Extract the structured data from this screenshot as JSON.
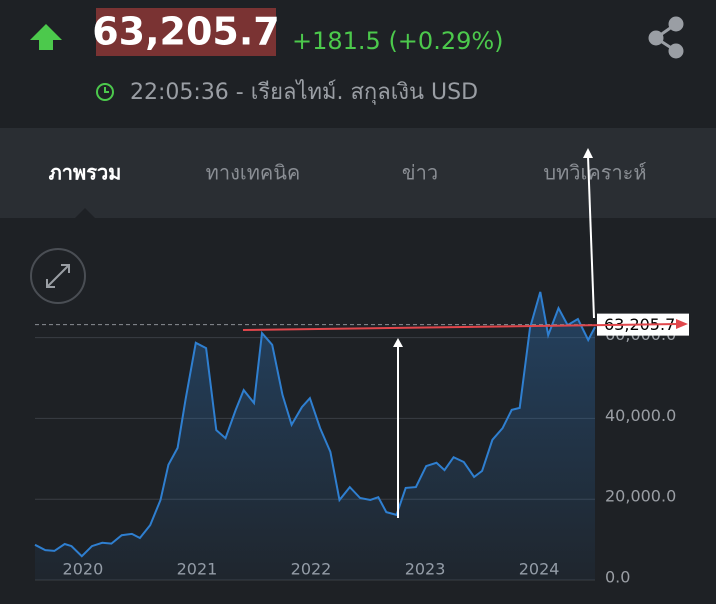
{
  "header": {
    "price": "63,205.7",
    "change": "+181.5 (+0.29%)",
    "status": "22:05:36 - เรียลไทม์. สกุลเงิน USD"
  },
  "tabs": [
    "ภาพรวม",
    "ทางเทคนิค",
    "ข่าว",
    "บทวิเคราะห์"
  ],
  "chart_data": {
    "type": "line",
    "x": [
      2019.58,
      2019.67,
      2019.75,
      2019.84,
      2019.9,
      2019.99,
      2020.08,
      2020.17,
      2020.25,
      2020.34,
      2020.43,
      2020.5,
      2020.59,
      2020.68,
      2020.75,
      2020.83,
      2020.9,
      2020.99,
      2021.08,
      2021.17,
      2021.25,
      2021.34,
      2021.41,
      2021.5,
      2021.57,
      2021.66,
      2021.75,
      2021.83,
      2021.92,
      2021.99,
      2022.08,
      2022.17,
      2022.25,
      2022.34,
      2022.43,
      2022.52,
      2022.59,
      2022.66,
      2022.75,
      2022.83,
      2022.92,
      2023.01,
      2023.1,
      2023.17,
      2023.25,
      2023.34,
      2023.43,
      2023.5,
      2023.59,
      2023.68,
      2023.76,
      2023.83,
      2023.92,
      2024.01,
      2024.08,
      2024.17,
      2024.25,
      2024.34,
      2024.43,
      2024.49
    ],
    "series": [
      {
        "color": "#2f7fd0",
        "values": [
          8700,
          7400,
          7200,
          8900,
          8400,
          5900,
          8400,
          9200,
          9000,
          11100,
          11400,
          10400,
          13600,
          19800,
          28500,
          32700,
          44600,
          58700,
          57400,
          37100,
          35100,
          42100,
          47000,
          43800,
          61100,
          58200,
          45800,
          38400,
          42800,
          45000,
          37600,
          31700,
          19800,
          23000,
          20300,
          19800,
          20500,
          16800,
          16100,
          22800,
          23000,
          28200,
          29000,
          27200,
          30400,
          29200,
          25500,
          27000,
          34700,
          37600,
          42100,
          42600,
          62400,
          71300,
          60600,
          67300,
          63100,
          64600,
          59400,
          62600
        ]
      }
    ],
    "xlim": [
      2019.58,
      2024.49
    ],
    "xticks": [
      2020,
      2021,
      2022,
      2023,
      2024
    ],
    "ylim": [
      0,
      89100
    ],
    "yticks": [
      {
        "value": 0,
        "label": "0.0"
      },
      {
        "value": 20000,
        "label": "20,000.0"
      },
      {
        "value": 40000,
        "label": "40,000.0"
      },
      {
        "value": 60000,
        "label": "60,000.0"
      }
    ],
    "last_price": {
      "value": 63205.7,
      "label": "63,205.7"
    },
    "grid": true
  }
}
